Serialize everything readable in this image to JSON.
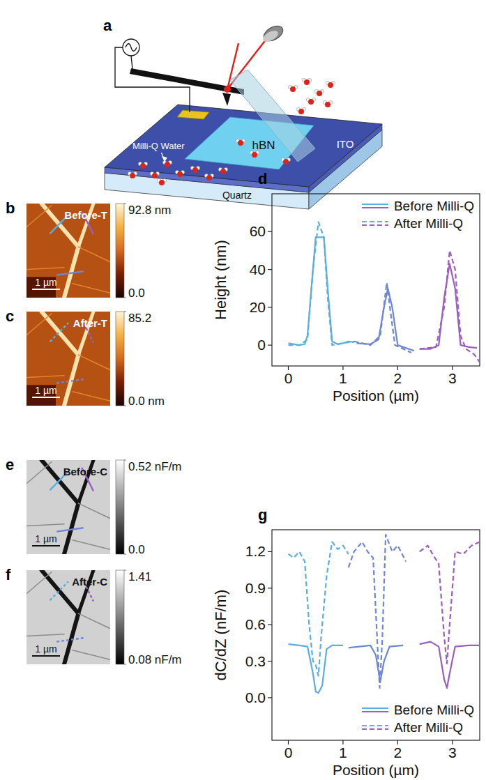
{
  "schematic": {
    "letter": "a",
    "water": "Milli-Q Water",
    "hbn": "hBN",
    "ito": "ITO",
    "quartz": "Quartz"
  },
  "images": [
    {
      "letter": "b",
      "label": "Before-T",
      "scale_bar": "1 µm",
      "line_style": "solid",
      "colors": [
        "#1a0400",
        "#7a1e00",
        "#d2691e",
        "#f5b041",
        "#fff5d6"
      ],
      "colorbar": {
        "range": [
          0,
          92.8
        ],
        "ticks": [
          {
            "value": 92.8,
            "label": "92.8 nm"
          },
          {
            "value": 0,
            "label": "0.0"
          }
        ]
      }
    },
    {
      "letter": "c",
      "label": "After-T",
      "scale_bar": "1 µm",
      "line_style": "dashed",
      "colors": [
        "#1a0400",
        "#7a1e00",
        "#d2691e",
        "#f5b041",
        "#fff5d6"
      ],
      "colorbar": {
        "range": [
          0,
          85.2
        ],
        "ticks": [
          {
            "value": 85.2,
            "label": "85.2"
          },
          {
            "value": 0,
            "label": "0.0 nm"
          }
        ]
      }
    },
    {
      "letter": "e",
      "label": "Before-C",
      "scale_bar": "1 µm",
      "line_style": "solid",
      "colors": [
        "#000000",
        "#ffffff"
      ],
      "colorbar": {
        "range": [
          0,
          0.52
        ],
        "ticks": [
          {
            "value": 0.52,
            "label": "0.52 nF/m"
          },
          {
            "value": 0,
            "label": "0.0"
          }
        ]
      }
    },
    {
      "letter": "f",
      "label": "After-C",
      "scale_bar": "1 µm",
      "line_style": "dashed",
      "colors": [
        "#000000",
        "#ffffff"
      ],
      "colorbar": {
        "range": [
          0.08,
          1.41
        ],
        "ticks": [
          {
            "value": 1.41,
            "label": "1.41"
          },
          {
            "value": 0.08,
            "label": "0.08 nF/m"
          }
        ]
      }
    }
  ],
  "chart_data": [
    {
      "type": "line",
      "panel": "d",
      "xlabel": "Position (µm)",
      "ylabel": "Height (nm)",
      "xlim": [
        -0.3,
        3.5
      ],
      "ylim": [
        -11,
        80
      ],
      "xticks": [
        0,
        1,
        2,
        3
      ],
      "yticks": [
        0,
        20,
        40,
        60
      ],
      "legend": "upper right",
      "series": [
        {
          "name": "Before Milli-Q",
          "line_style": "solid",
          "colors": [
            "#5aaee0",
            "#6f86d4",
            "#9a5fc0"
          ],
          "x": [
            0,
            0.1,
            0.2,
            0.3,
            0.35,
            0.45,
            0.5,
            0.65,
            0.72,
            0.8,
            0.9,
            1.0,
            1.1,
            1.2,
            null,
            1.25,
            1.5,
            1.65,
            1.75,
            1.82,
            1.9,
            2.0,
            2.1,
            2.3,
            null,
            2.4,
            2.6,
            2.75,
            2.85,
            2.95,
            3.05,
            3.15,
            3.3,
            3.45
          ],
          "values": [
            1,
            0.5,
            0,
            0.5,
            5,
            40,
            57,
            57,
            30,
            2,
            0.5,
            1,
            2,
            1.5,
            null,
            1,
            0.5,
            3,
            20,
            30,
            20,
            0,
            -1,
            -3,
            null,
            -2,
            -2,
            0,
            25,
            43,
            30,
            0,
            -1,
            -1.5
          ]
        },
        {
          "name": "After Milli-Q",
          "line_style": "dashed",
          "colors": [
            "#5aaee0",
            "#6f86d4",
            "#9a5fc0"
          ],
          "x": [
            0,
            0.2,
            0.35,
            0.45,
            0.55,
            0.65,
            0.72,
            0.8,
            1.0,
            1.2,
            null,
            1.2,
            1.5,
            1.68,
            1.8,
            1.88,
            1.95,
            2.1,
            2.25,
            null,
            2.4,
            2.7,
            2.85,
            2.95,
            3.05,
            3.15,
            3.25,
            3.4,
            3.5
          ],
          "values": [
            0,
            0,
            3,
            40,
            65,
            57,
            25,
            0,
            1,
            2,
            null,
            2,
            0,
            5,
            33,
            15,
            0,
            -2,
            -4,
            null,
            -2,
            -1,
            20,
            50,
            40,
            5,
            -2,
            -5,
            -9
          ]
        }
      ]
    },
    {
      "type": "line",
      "panel": "g",
      "xlabel": "Position (µm)",
      "ylabel": "dC/dZ (nF/m)",
      "xlim": [
        -0.3,
        3.5
      ],
      "ylim": [
        -0.35,
        1.38
      ],
      "xticks": [
        0,
        1,
        2,
        3
      ],
      "yticks": [
        {
          "value": 0,
          "label": "0.0"
        },
        0.3,
        0.6,
        0.9,
        1.2
      ],
      "legend": "lower right",
      "series": [
        {
          "name": "Before Milli-Q",
          "line_style": "solid",
          "colors": [
            "#5aaee0",
            "#6f86d4",
            "#9a5fc0"
          ],
          "x": [
            0,
            0.2,
            0.35,
            0.45,
            0.5,
            0.55,
            0.62,
            0.7,
            0.8,
            1.0,
            null,
            1.1,
            1.3,
            1.5,
            1.6,
            1.68,
            1.75,
            1.85,
            2.1,
            null,
            2.4,
            2.6,
            2.75,
            2.85,
            2.9,
            2.95,
            3.05,
            3.3,
            3.5
          ],
          "values": [
            0.44,
            0.43,
            0.42,
            0.2,
            0.05,
            0.04,
            0.1,
            0.4,
            0.43,
            0.43,
            null,
            0.41,
            0.42,
            0.43,
            0.35,
            0.13,
            0.3,
            0.42,
            0.43,
            null,
            0.44,
            0.46,
            0.42,
            0.15,
            0.08,
            0.2,
            0.42,
            0.43,
            0.43
          ]
        },
        {
          "name": "After Milli-Q",
          "line_style": "dashed",
          "colors": [
            "#5aaee0",
            "#6f86d4",
            "#9a5fc0"
          ],
          "x": [
            0,
            0.1,
            0.2,
            0.3,
            0.38,
            0.45,
            0.5,
            0.55,
            0.6,
            0.7,
            0.8,
            0.9,
            1.0,
            1.1,
            null,
            1.1,
            1.2,
            1.35,
            1.45,
            1.55,
            1.6,
            1.67,
            1.72,
            1.78,
            1.9,
            2.0,
            2.15,
            null,
            2.4,
            2.55,
            2.65,
            2.75,
            2.85,
            2.9,
            2.95,
            3.05,
            3.2,
            3.35,
            3.5
          ],
          "values": [
            1.18,
            1.15,
            1.2,
            1.12,
            0.6,
            0.3,
            0.27,
            0.18,
            0.5,
            1.0,
            1.28,
            1.22,
            1.25,
            1.18,
            null,
            1.07,
            1.2,
            1.28,
            1.2,
            1.15,
            0.7,
            0.08,
            0.5,
            1.34,
            1.2,
            1.25,
            1.12,
            null,
            1.2,
            1.25,
            1.17,
            1.1,
            0.5,
            0.28,
            0.6,
            1.2,
            1.18,
            1.25,
            1.28
          ]
        }
      ]
    }
  ]
}
